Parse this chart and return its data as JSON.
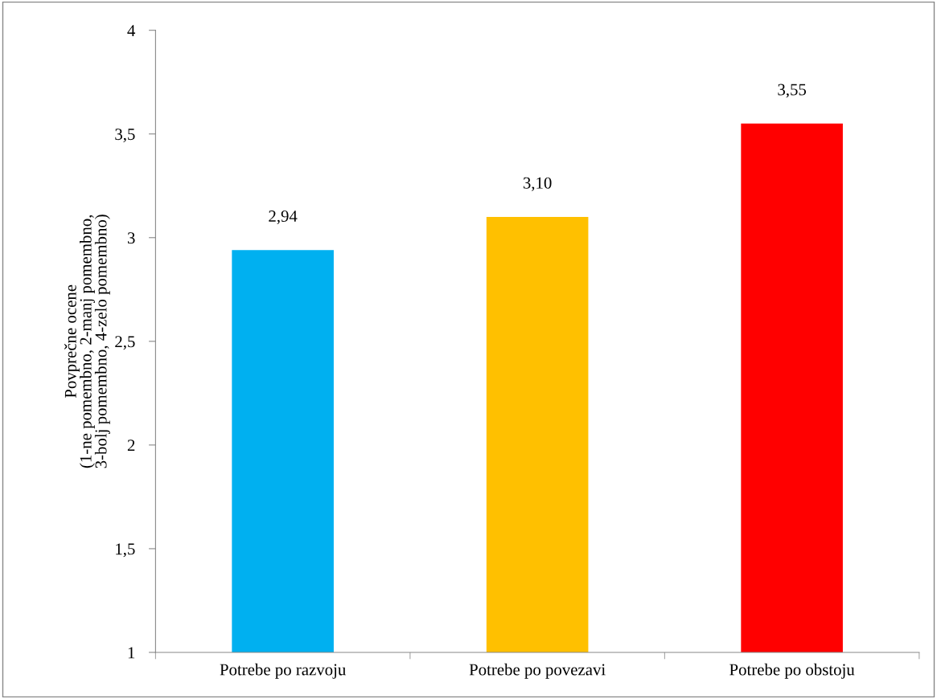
{
  "chart_data": {
    "type": "bar",
    "ylabel": "Povprečne ocene\n(1-ne pomembno, 2-manj pomembno,\n3-bolj pomembno, 4-zelo pomembno)",
    "categories": [
      "Potrebe po razvoju",
      "Potrebe po povezavi",
      "Potrebe po obstoju"
    ],
    "values": [
      2.94,
      3.1,
      3.55
    ],
    "colors": [
      "#00b0f0",
      "#ffc000",
      "#ff0000"
    ],
    "value_labels": [
      "2,94",
      "3,10",
      "3,55"
    ],
    "ylim": [
      1,
      4
    ],
    "yticks": [
      1,
      {
        "value": 1.5,
        "label": "1,5"
      },
      2,
      {
        "value": 2.5,
        "label": "2,5"
      },
      3,
      {
        "value": 3.5,
        "label": "3,5"
      },
      4
    ],
    "grid": false,
    "legend": false
  }
}
